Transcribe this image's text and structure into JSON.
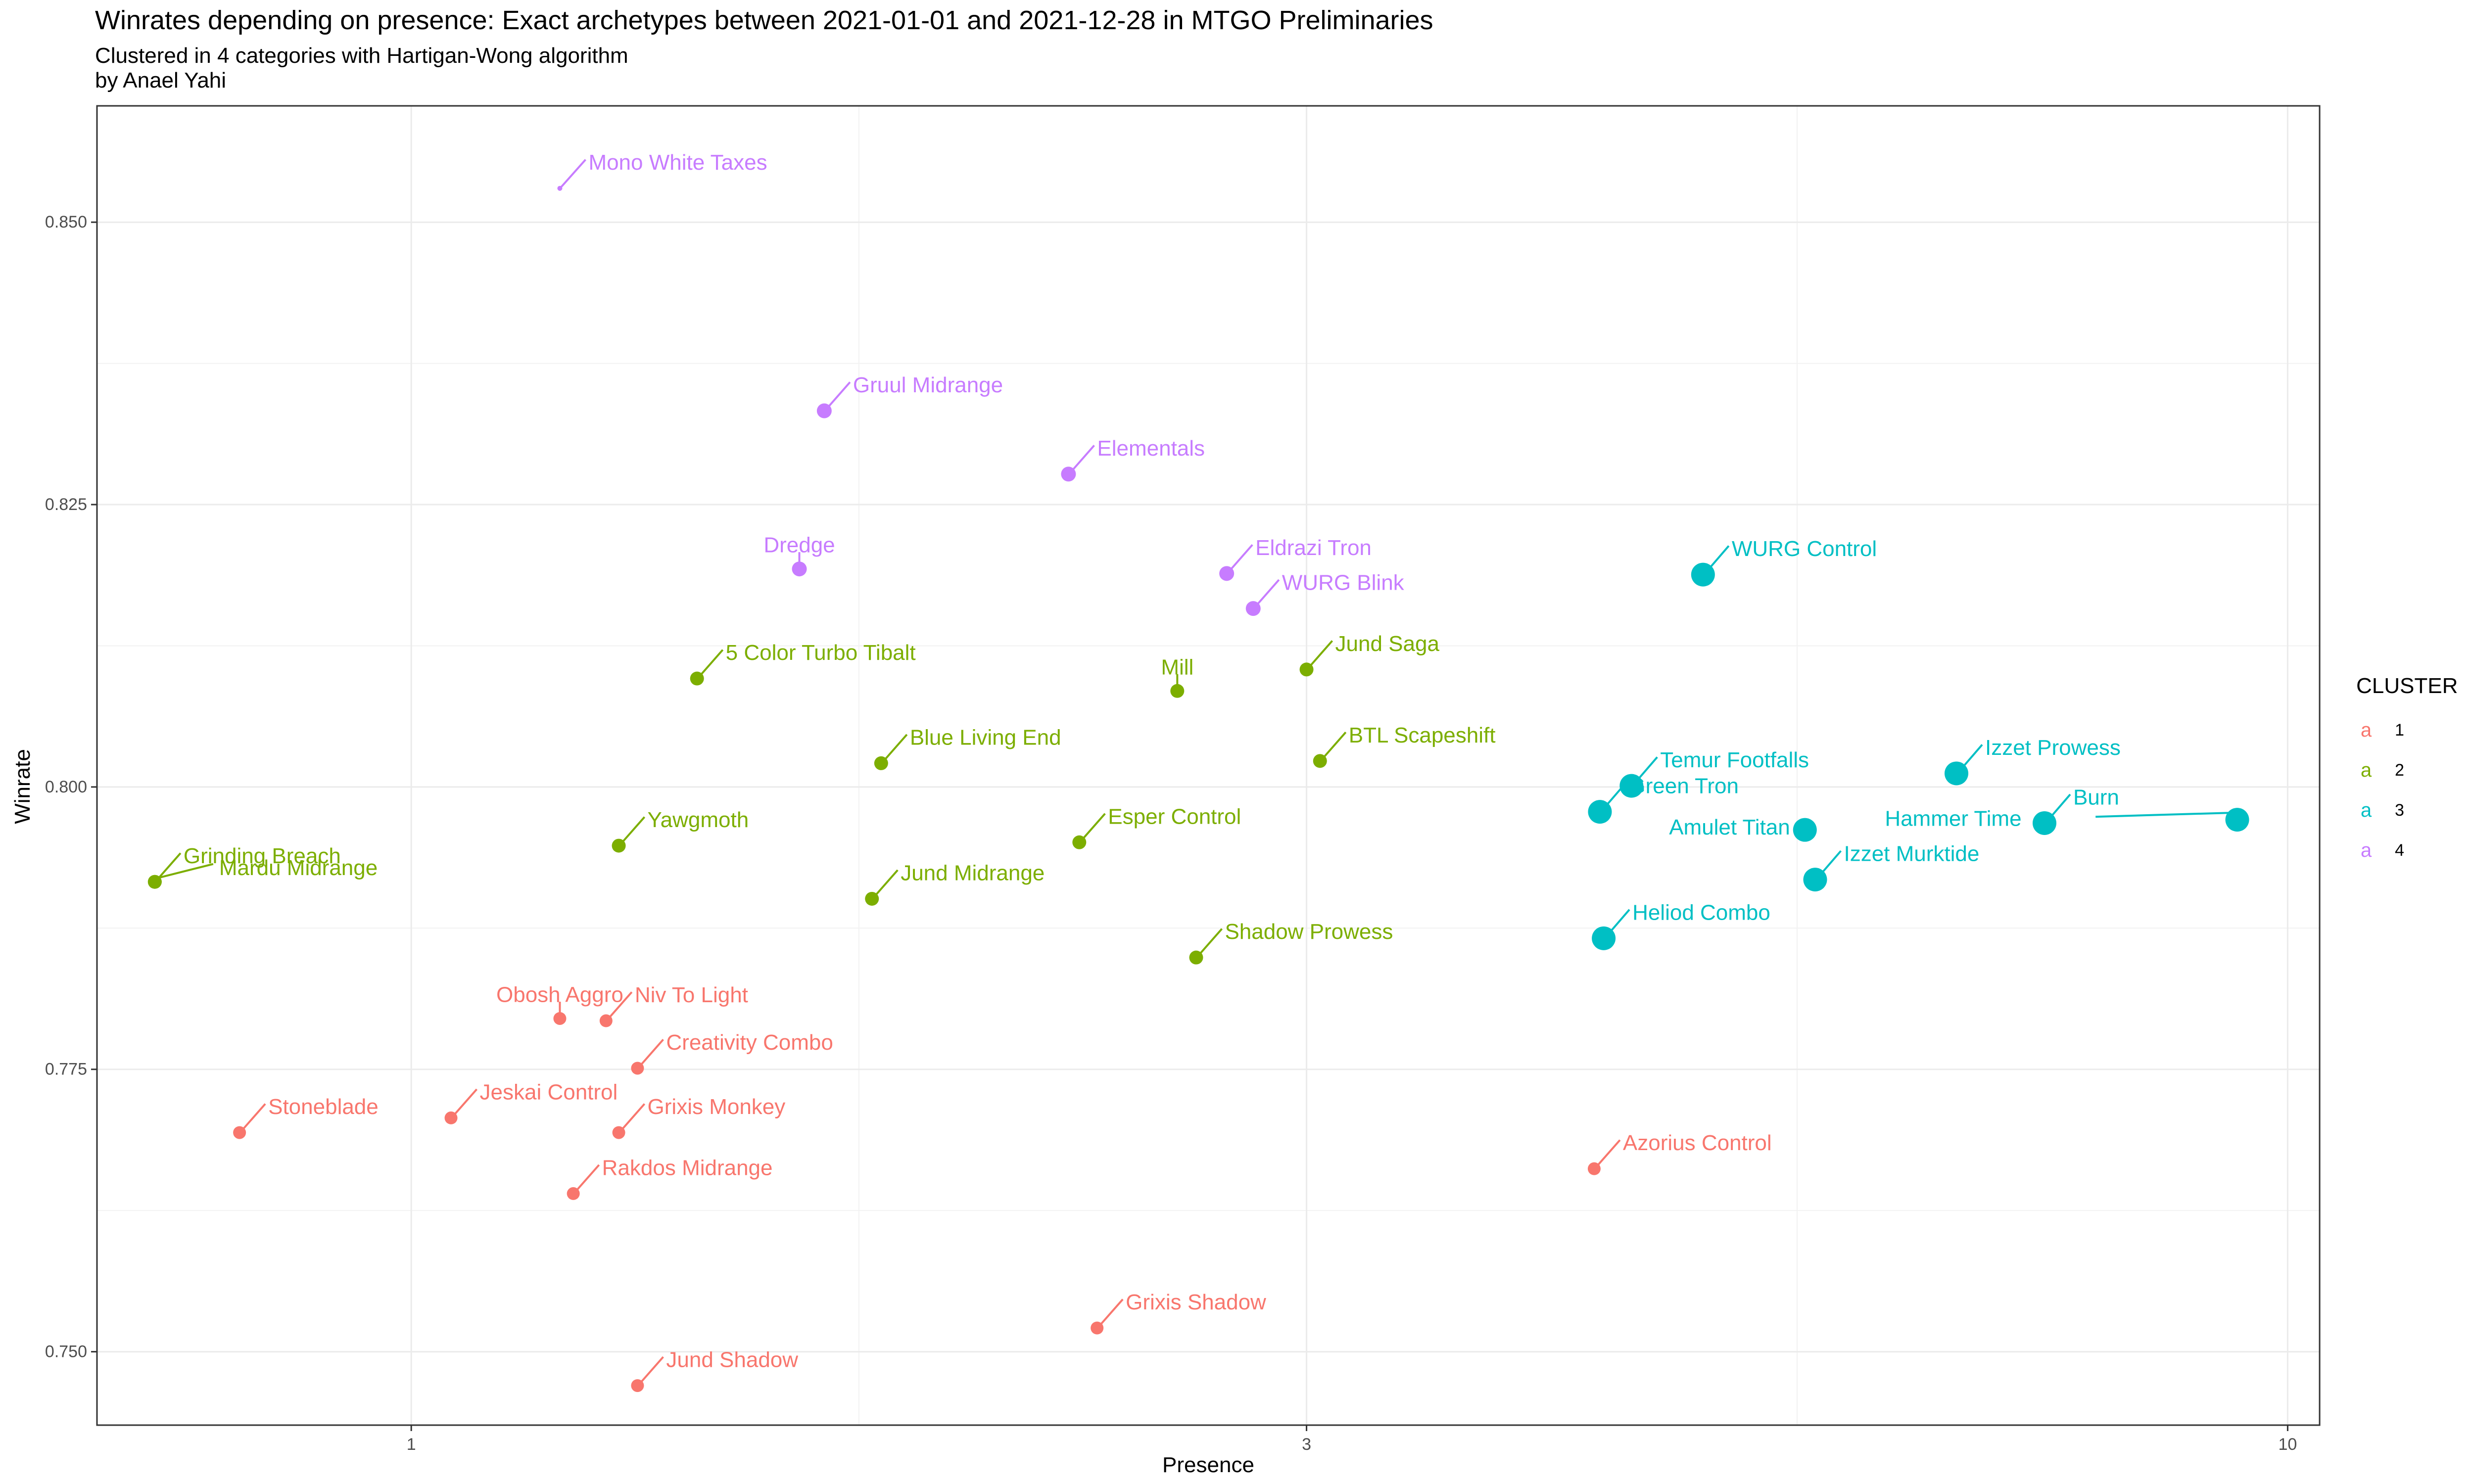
{
  "chart_data": {
    "type": "scatter",
    "title": "Winrates depending on presence: Exact archetypes  between 2021-01-01 and 2021-12-28 in MTGO Preliminaries",
    "subtitle_lines": [
      "Clustered in 4 categories with Hartigan-Wong algorithm",
      "by Anael Yahi"
    ],
    "xlabel": "Presence",
    "ylabel": "Winrate",
    "x_scale": "log10",
    "xlim": [
      0.68,
      10.4
    ],
    "ylim": [
      0.7435,
      0.8603
    ],
    "x_ticks": [
      1,
      3,
      10
    ],
    "x_tick_labels": [
      "1",
      "3",
      "10"
    ],
    "y_ticks": [
      0.75,
      0.775,
      0.8,
      0.825,
      0.85
    ],
    "y_tick_labels": [
      "0.750",
      "0.775",
      "0.800",
      "0.825",
      "0.850"
    ],
    "grid": true,
    "legend": {
      "title": "CLUSTER",
      "position": "right",
      "key_glyph": "a",
      "entries": [
        "1",
        "2",
        "3",
        "4"
      ]
    },
    "colors": {
      "1": "#F8766D",
      "2": "#7CAE00",
      "3": "#00BFC4",
      "4": "#C77CFF"
    },
    "points": [
      {
        "label": "Mono White Taxes",
        "x": 1.2,
        "y": 0.853,
        "cluster": "4",
        "label_pos": "ur"
      },
      {
        "label": "Gruul Midrange",
        "x": 1.66,
        "y": 0.8333,
        "cluster": "4",
        "label_pos": "ur"
      },
      {
        "label": "Elementals",
        "x": 2.24,
        "y": 0.8277,
        "cluster": "4",
        "label_pos": "ur"
      },
      {
        "label": "Dredge",
        "x": 1.61,
        "y": 0.8193,
        "cluster": "4",
        "label_pos": "up"
      },
      {
        "label": "Eldrazi Tron",
        "x": 2.72,
        "y": 0.8189,
        "cluster": "4",
        "label_pos": "ur"
      },
      {
        "label": "WURG Blink",
        "x": 2.81,
        "y": 0.8158,
        "cluster": "4",
        "label_pos": "ur"
      },
      {
        "label": "5 Color Turbo Tibalt",
        "x": 1.42,
        "y": 0.8096,
        "cluster": "2",
        "label_pos": "ur"
      },
      {
        "label": "Mill",
        "x": 2.56,
        "y": 0.8085,
        "cluster": "2",
        "label_pos": "up"
      },
      {
        "label": "Jund Saga",
        "x": 3.0,
        "y": 0.8104,
        "cluster": "2",
        "label_pos": "ur"
      },
      {
        "label": "Blue Living End",
        "x": 1.78,
        "y": 0.8021,
        "cluster": "2",
        "label_pos": "ur"
      },
      {
        "label": "BTL Scapeshift",
        "x": 3.05,
        "y": 0.8023,
        "cluster": "2",
        "label_pos": "ur"
      },
      {
        "label": "Yawgmoth",
        "x": 1.29,
        "y": 0.7948,
        "cluster": "2",
        "label_pos": "ur"
      },
      {
        "label": "Esper Control",
        "x": 2.27,
        "y": 0.7951,
        "cluster": "2",
        "label_pos": "ur"
      },
      {
        "label": "Jund Midrange",
        "x": 1.76,
        "y": 0.7901,
        "cluster": "2",
        "label_pos": "ur"
      },
      {
        "label": "Grinding Breach",
        "x": 0.73,
        "y": 0.7916,
        "cluster": "2",
        "label_pos": "ur"
      },
      {
        "label": "Mardu Midrange",
        "x": 0.73,
        "y": 0.7916,
        "cluster": "2",
        "label_pos": "right"
      },
      {
        "label": "Shadow Prowess",
        "x": 2.62,
        "y": 0.7849,
        "cluster": "2",
        "label_pos": "ur"
      },
      {
        "label": "WURG Control",
        "x": 4.88,
        "y": 0.8188,
        "cluster": "3",
        "label_pos": "ur"
      },
      {
        "label": "Izzet Prowess",
        "x": 6.66,
        "y": 0.8012,
        "cluster": "3",
        "label_pos": "ur"
      },
      {
        "label": "Burn",
        "x": 7.42,
        "y": 0.7968,
        "cluster": "3",
        "label_pos": "ur"
      },
      {
        "label": "Hammer Time",
        "x": 9.4,
        "y": 0.7971,
        "cluster": "3",
        "label_pos": "farleft"
      },
      {
        "label": "Green Tron",
        "x": 4.3,
        "y": 0.7978,
        "cluster": "3",
        "label_pos": "ur"
      },
      {
        "label": "Temur Footfalls",
        "x": 4.47,
        "y": 0.8001,
        "cluster": "3",
        "label_pos": "ur"
      },
      {
        "label": "Amulet Titan",
        "x": 5.53,
        "y": 0.7962,
        "cluster": "3",
        "label_pos": "ul"
      },
      {
        "label": "Izzet Murktide",
        "x": 5.6,
        "y": 0.7918,
        "cluster": "3",
        "label_pos": "ur"
      },
      {
        "label": "Heliod Combo",
        "x": 4.32,
        "y": 0.7866,
        "cluster": "3",
        "label_pos": "ur"
      },
      {
        "label": "Obosh Aggro",
        "x": 1.2,
        "y": 0.7795,
        "cluster": "1",
        "label_pos": "up"
      },
      {
        "label": "Niv To Light",
        "x": 1.27,
        "y": 0.7793,
        "cluster": "1",
        "label_pos": "ur"
      },
      {
        "label": "Creativity Combo",
        "x": 1.32,
        "y": 0.7751,
        "cluster": "1",
        "label_pos": "ur"
      },
      {
        "label": "Grixis Monkey",
        "x": 1.29,
        "y": 0.7694,
        "cluster": "1",
        "label_pos": "ur"
      },
      {
        "label": "Stoneblade",
        "x": 0.81,
        "y": 0.7694,
        "cluster": "1",
        "label_pos": "ur"
      },
      {
        "label": "Jeskai Control",
        "x": 1.05,
        "y": 0.7707,
        "cluster": "1",
        "label_pos": "ur"
      },
      {
        "label": "Rakdos Midrange",
        "x": 1.22,
        "y": 0.764,
        "cluster": "1",
        "label_pos": "ur"
      },
      {
        "label": "Azorius Control",
        "x": 4.27,
        "y": 0.7662,
        "cluster": "1",
        "label_pos": "ur"
      },
      {
        "label": "Grixis Shadow",
        "x": 2.32,
        "y": 0.7521,
        "cluster": "1",
        "label_pos": "ur"
      },
      {
        "label": "Jund Shadow",
        "x": 1.32,
        "y": 0.747,
        "cluster": "1",
        "label_pos": "ur"
      }
    ]
  }
}
